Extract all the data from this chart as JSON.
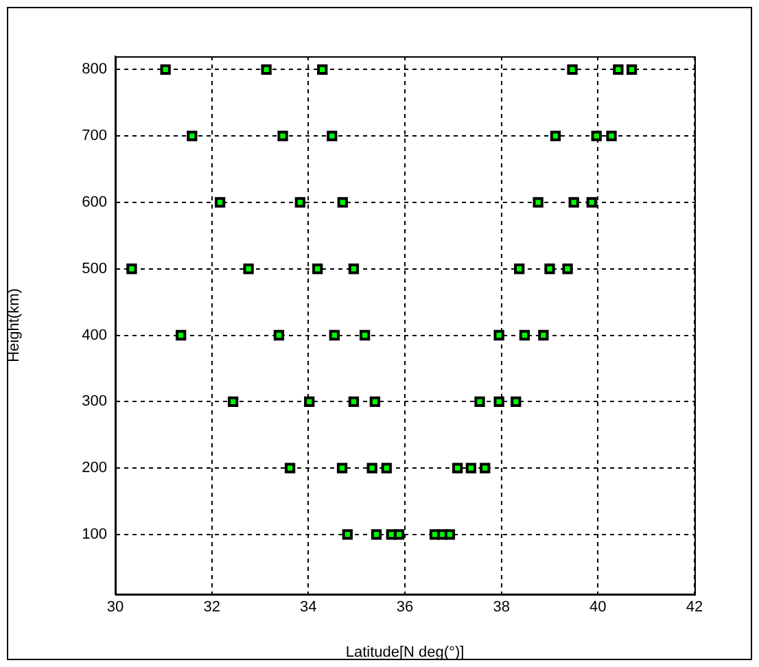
{
  "chart_data": {
    "type": "scatter",
    "xlabel": "Latitude[N deg(°)]",
    "ylabel": "Height(km)",
    "xlim": [
      30,
      42
    ],
    "xticks": [
      30,
      32,
      34,
      36,
      38,
      40,
      42
    ],
    "ylim": [
      10,
      820
    ],
    "yticks": [
      100,
      200,
      300,
      400,
      500,
      600,
      700,
      800
    ],
    "grid": true,
    "marker": "square",
    "series": [
      {
        "color": "#00ff00",
        "x": [
          31.04,
          33.13,
          34.29,
          39.47,
          40.42,
          40.7,
          31.59,
          33.47,
          34.49,
          39.12,
          39.97,
          40.28,
          32.17,
          33.83,
          34.71,
          38.76,
          39.5,
          39.87,
          30.34,
          32.76,
          34.19,
          34.94,
          38.37,
          39.0,
          39.37,
          31.36,
          33.39,
          34.54,
          35.17,
          37.95,
          38.48,
          38.87,
          32.44,
          34.02,
          34.94,
          35.38,
          37.55,
          37.95,
          38.3,
          33.62,
          34.7,
          35.32,
          35.62,
          37.09,
          37.37,
          37.66,
          34.81,
          35.41,
          35.72,
          35.88,
          36.62,
          36.78,
          36.93
        ],
        "values": [
          800,
          800,
          800,
          800,
          800,
          800,
          700,
          700,
          700,
          700,
          700,
          700,
          600,
          600,
          600,
          600,
          600,
          600,
          500,
          500,
          500,
          500,
          500,
          500,
          500,
          400,
          400,
          400,
          400,
          400,
          400,
          400,
          300,
          300,
          300,
          300,
          300,
          300,
          300,
          200,
          200,
          200,
          200,
          200,
          200,
          200,
          100,
          100,
          100,
          100,
          100,
          100,
          100
        ]
      }
    ]
  }
}
